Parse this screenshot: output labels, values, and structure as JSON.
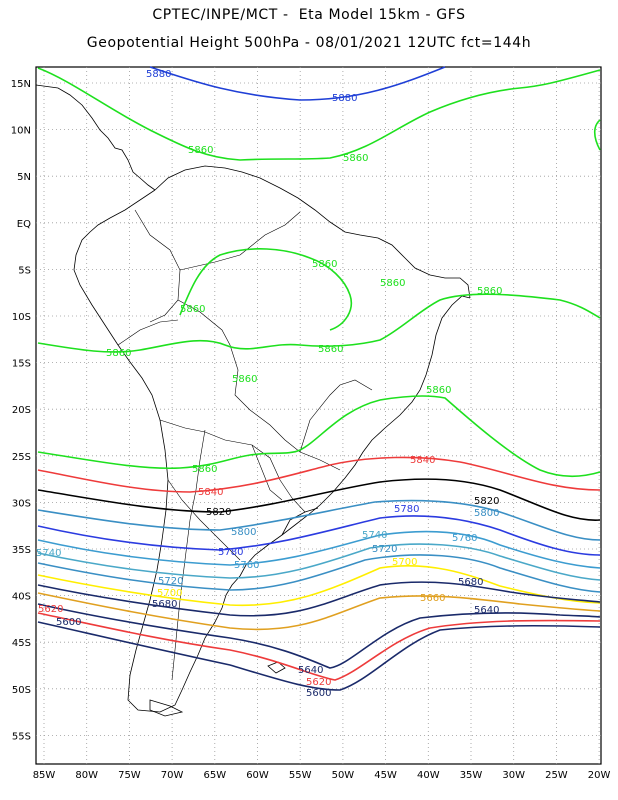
{
  "title_line1": "CPTEC/INPE/MCT -  Eta Model 15km - GFS",
  "title_line2": "Geopotential Height 500hPa - 08/01/2021 12UTC fct=144h",
  "lat_labels": [
    "15N",
    "10N",
    "5N",
    "EQ",
    "5S",
    "10S",
    "15S",
    "20S",
    "25S",
    "30S",
    "35S",
    "40S",
    "45S",
    "50S",
    "55S"
  ],
  "lon_labels": [
    "85W",
    "80W",
    "75W",
    "70W",
    "65W",
    "60W",
    "55W",
    "50W",
    "45W",
    "40W",
    "35W",
    "30W",
    "25W",
    "20W"
  ],
  "contour_labels": {
    "l5880": "5880",
    "l5860": "5860",
    "l5840": "5840",
    "l5820": "5820",
    "l5800": "5800",
    "l5780": "5780",
    "l5760": "5760",
    "l5740": "5740",
    "l5720": "5720",
    "l5700": "5700",
    "l5680": "5680",
    "l5660": "5660",
    "l5640": "5640",
    "l5620": "5620",
    "l5600": "5600"
  },
  "colors": {
    "c5880": "#1f3fd6",
    "c5860": "#1ee01e",
    "c5840": "#ee3b3b",
    "c5820": "#000000",
    "c5800": "#3a8fc4",
    "c5780": "#2b3be0",
    "c5760": "#3c9cd0",
    "c5740": "#4aa8c8",
    "c5720": "#3a8fc4",
    "c5700": "#ffee00",
    "c5680": "#1a2a6a",
    "c5660": "#e0a020",
    "c5640": "#1a2a6a",
    "c5620": "#ee3b3b",
    "c5600": "#1a2a6a"
  }
}
